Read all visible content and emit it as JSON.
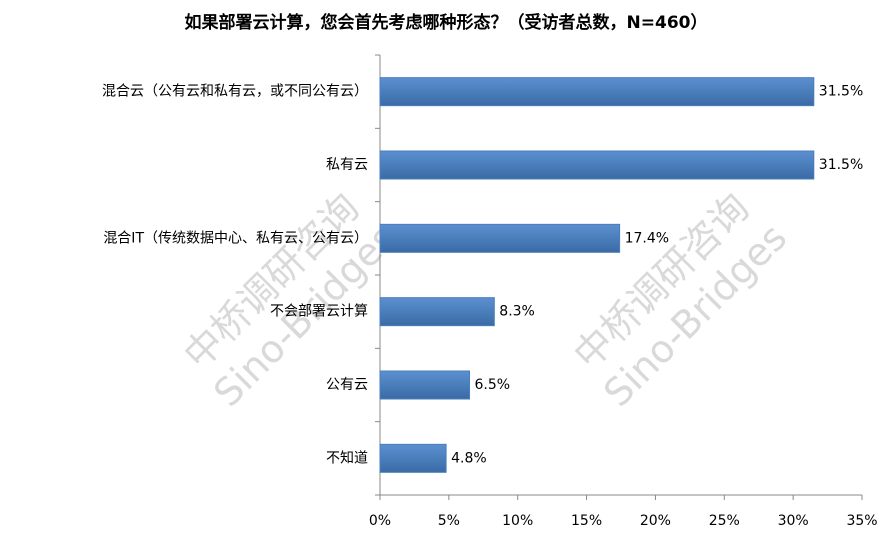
{
  "chart_data": {
    "type": "hbar",
    "title": "如果部署云计算，您会首先考虑哪种形态？（受访者总数，N=460）",
    "watermark": [
      "中桥调研咨询",
      "Sino-Bridges"
    ],
    "categories": [
      "混合云（公有云和私有云，或不同公有云）",
      "私有云",
      "混合IT（传统数据中心、私有云、公有云）",
      "不会部署云计算",
      "公有云",
      "不知道"
    ],
    "values": [
      31.5,
      31.5,
      17.4,
      8.3,
      6.5,
      4.8
    ],
    "value_labels": [
      "31.5%",
      "31.5%",
      "17.4%",
      "8.3%",
      "6.5%",
      "4.8%"
    ],
    "color": "#4a7ebb",
    "xlim": [
      0,
      35
    ],
    "xticks": [
      {
        "value": 0,
        "label": "0%"
      },
      {
        "value": 5,
        "label": "5%"
      },
      {
        "value": 10,
        "label": "10%"
      },
      {
        "value": 15,
        "label": "15%"
      },
      {
        "value": 20,
        "label": "20%"
      },
      {
        "value": 25,
        "label": "25%"
      },
      {
        "value": 30,
        "label": "30%"
      },
      {
        "value": 35,
        "label": "35%"
      }
    ],
    "grid": false
  }
}
